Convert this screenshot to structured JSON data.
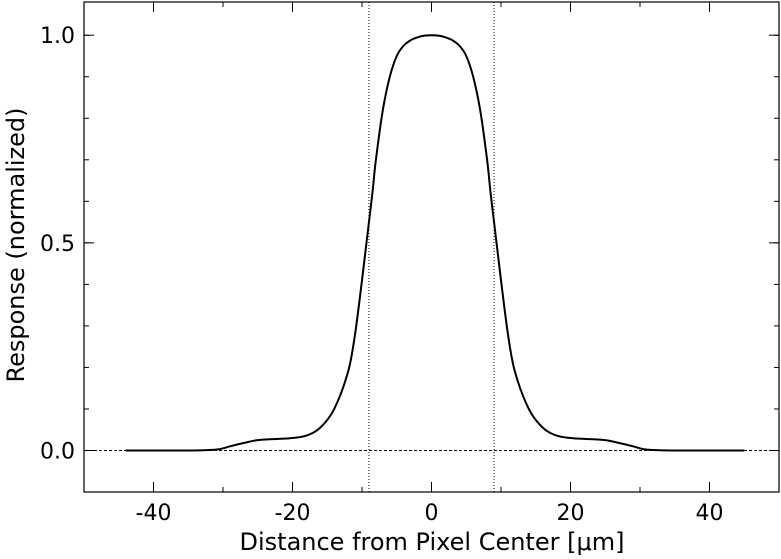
{
  "chart_data": {
    "type": "line",
    "title": "",
    "xlabel": "Distance from Pixel Center [μm]",
    "ylabel": "Response (normalized)",
    "xlim": [
      -50,
      50
    ],
    "ylim": [
      -0.1,
      1.08
    ],
    "x_ticks": [
      -40,
      -20,
      0,
      20,
      40
    ],
    "x_tick_labels": [
      "-40",
      "-20",
      "0",
      "20",
      "40"
    ],
    "y_ticks": [
      0.0,
      0.5,
      1.0
    ],
    "y_tick_labels": [
      "0.0",
      "0.5",
      "1.0"
    ],
    "grid": false,
    "legend": "none",
    "reference_lines": {
      "horizontal_y": 0.0,
      "vertical_x": [
        -9,
        9
      ]
    },
    "series": [
      {
        "x": [
          -44,
          -35,
          -31,
          -29,
          -27,
          -25,
          -22,
          -20,
          -18,
          -16,
          -14,
          -12,
          -11,
          -10,
          -9.5,
          -9,
          -8.5,
          -8,
          -7,
          -6,
          -5,
          -4,
          -3,
          -2,
          -1,
          0,
          1,
          2,
          3,
          4,
          5,
          6,
          7,
          8,
          8.5,
          9,
          9.5,
          10,
          11,
          12,
          14,
          16,
          18,
          20,
          22,
          25,
          27,
          29,
          31,
          35,
          45
        ],
        "y": [
          0.0,
          0.0,
          0.002,
          0.01,
          0.018,
          0.025,
          0.028,
          0.03,
          0.036,
          0.055,
          0.1,
          0.19,
          0.28,
          0.41,
          0.48,
          0.55,
          0.62,
          0.7,
          0.82,
          0.9,
          0.95,
          0.975,
          0.988,
          0.995,
          0.999,
          1.0,
          0.999,
          0.995,
          0.988,
          0.975,
          0.95,
          0.9,
          0.82,
          0.7,
          0.62,
          0.55,
          0.48,
          0.41,
          0.28,
          0.19,
          0.1,
          0.055,
          0.036,
          0.03,
          0.028,
          0.025,
          0.018,
          0.01,
          0.002,
          0.0,
          0.0
        ]
      }
    ]
  }
}
